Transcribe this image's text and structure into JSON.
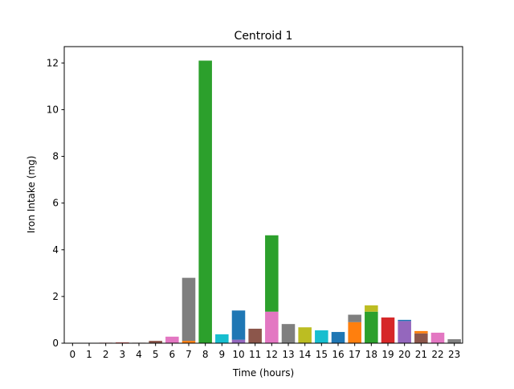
{
  "chart_data": {
    "type": "bar",
    "stacked": true,
    "title": "Centroid 1",
    "xlabel": "Time (hours)",
    "ylabel": "Iron Intake (mg)",
    "x": [
      0,
      1,
      2,
      3,
      4,
      5,
      6,
      7,
      8,
      9,
      10,
      11,
      12,
      13,
      14,
      15,
      16,
      17,
      18,
      19,
      20,
      21,
      22,
      23
    ],
    "xlim": [
      -0.5,
      23.5
    ],
    "ylim": [
      0,
      12.7
    ],
    "yticks": [
      0,
      2,
      4,
      6,
      8,
      10,
      12
    ],
    "grid": false,
    "legend": "none",
    "bars": [
      {
        "x": 0,
        "segments": []
      },
      {
        "x": 1,
        "segments": []
      },
      {
        "x": 2,
        "segments": [
          {
            "value": 0.02,
            "color": "#d62728"
          }
        ]
      },
      {
        "x": 3,
        "segments": [
          {
            "value": 0.03,
            "color": "#d62728"
          }
        ]
      },
      {
        "x": 4,
        "segments": [
          {
            "value": 0.02,
            "color": "#8c564b"
          }
        ]
      },
      {
        "x": 5,
        "segments": [
          {
            "value": 0.1,
            "color": "#8c564b"
          }
        ]
      },
      {
        "x": 6,
        "segments": [
          {
            "value": 0.28,
            "color": "#e377c2"
          }
        ]
      },
      {
        "x": 7,
        "segments": [
          {
            "value": 0.1,
            "color": "#ff7f0e"
          },
          {
            "value": 2.7,
            "color": "#7f7f7f"
          }
        ]
      },
      {
        "x": 8,
        "segments": [
          {
            "value": 12.1,
            "color": "#2ca02c"
          }
        ]
      },
      {
        "x": 9,
        "segments": [
          {
            "value": 0.38,
            "color": "#17becf"
          }
        ]
      },
      {
        "x": 10,
        "segments": [
          {
            "value": 0.15,
            "color": "#9467bd"
          },
          {
            "value": 1.25,
            "color": "#1f77b4"
          }
        ]
      },
      {
        "x": 11,
        "segments": [
          {
            "value": 0.62,
            "color": "#8c564b"
          }
        ]
      },
      {
        "x": 12,
        "segments": [
          {
            "value": 1.35,
            "color": "#e377c2"
          },
          {
            "value": 3.27,
            "color": "#2ca02c"
          }
        ]
      },
      {
        "x": 13,
        "segments": [
          {
            "value": 0.82,
            "color": "#7f7f7f"
          }
        ]
      },
      {
        "x": 14,
        "segments": [
          {
            "value": 0.68,
            "color": "#bcbd22"
          }
        ]
      },
      {
        "x": 15,
        "segments": [
          {
            "value": 0.55,
            "color": "#17becf"
          }
        ]
      },
      {
        "x": 16,
        "segments": [
          {
            "value": 0.48,
            "color": "#1f77b4"
          }
        ]
      },
      {
        "x": 17,
        "segments": [
          {
            "value": 0.9,
            "color": "#ff7f0e"
          },
          {
            "value": 0.32,
            "color": "#7f7f7f"
          }
        ]
      },
      {
        "x": 18,
        "segments": [
          {
            "value": 1.35,
            "color": "#2ca02c"
          },
          {
            "value": 0.27,
            "color": "#bcbd22"
          }
        ]
      },
      {
        "x": 19,
        "segments": [
          {
            "value": 1.1,
            "color": "#d62728"
          }
        ]
      },
      {
        "x": 20,
        "segments": [
          {
            "value": 0.95,
            "color": "#9467bd"
          },
          {
            "value": 0.05,
            "color": "#1f77b4"
          }
        ]
      },
      {
        "x": 21,
        "segments": [
          {
            "value": 0.42,
            "color": "#8c564b"
          },
          {
            "value": 0.1,
            "color": "#ff7f0e"
          }
        ]
      },
      {
        "x": 22,
        "segments": [
          {
            "value": 0.45,
            "color": "#e377c2"
          }
        ]
      },
      {
        "x": 23,
        "segments": [
          {
            "value": 0.17,
            "color": "#7f7f7f"
          }
        ]
      }
    ]
  }
}
